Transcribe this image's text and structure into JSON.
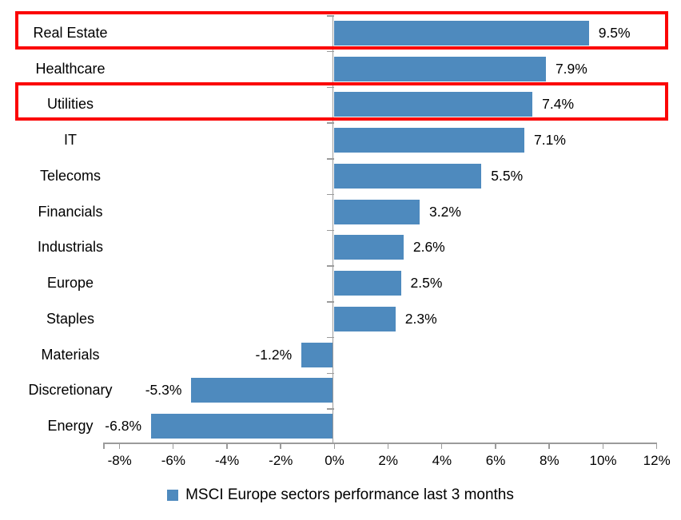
{
  "chart_data": {
    "type": "bar",
    "orientation": "horizontal",
    "categories": [
      "Real Estate",
      "Healthcare",
      "Utilities",
      "IT",
      "Telecoms",
      "Financials",
      "Industrials",
      "Europe",
      "Staples",
      "Materials",
      "Discretionary",
      "Energy"
    ],
    "values": [
      9.5,
      7.9,
      7.4,
      7.1,
      5.5,
      3.2,
      2.6,
      2.5,
      2.3,
      -1.2,
      -5.3,
      -6.8
    ],
    "labels": [
      "9.5%",
      "7.9%",
      "7.4%",
      "7.1%",
      "5.5%",
      "3.2%",
      "2.6%",
      "2.5%",
      "2.3%",
      "-1.2%",
      "-5.3%",
      "-6.8%"
    ],
    "x_ticks": [
      "-8%",
      "-6%",
      "-4%",
      "-2%",
      "0%",
      "2%",
      "4%",
      "6%",
      "8%",
      "10%",
      "12%"
    ],
    "x_tick_values": [
      -8,
      -6,
      -4,
      -2,
      0,
      2,
      4,
      6,
      8,
      10,
      12
    ],
    "xlim": [
      -8.5,
      12
    ],
    "grid": false,
    "legend": "MSCI Europe sectors performance last 3 months",
    "legend_position": "bottom",
    "bar_color": "#4e8abe",
    "axis_color": "#9b9b9b",
    "text_color": "#000000",
    "highlight_color": "#fb0505",
    "highlighted_categories": [
      "Real Estate",
      "Utilities"
    ]
  }
}
